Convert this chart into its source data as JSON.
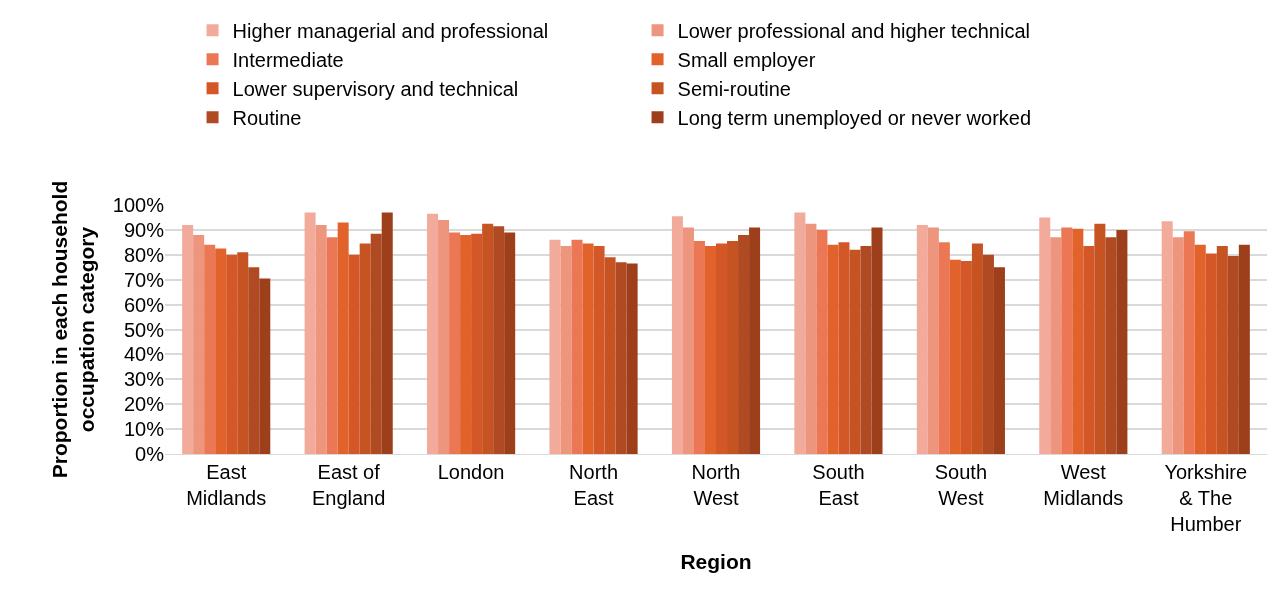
{
  "chart_data": {
    "type": "bar",
    "xlabel": "Region",
    "ylabel": "Proportion in each household occupation category",
    "categories": [
      "East Midlands",
      "East of England",
      "London",
      "North East",
      "North West",
      "South East",
      "South West",
      "West Midlands",
      "Yorkshire & The Humber"
    ],
    "series": [
      {
        "name": "Higher managerial and professional",
        "color": "#f2aa9a",
        "values": [
          0.92,
          0.97,
          0.965,
          0.86,
          0.955,
          0.97,
          0.92,
          0.95,
          0.935
        ]
      },
      {
        "name": "Lower professional and higher technical",
        "color": "#ee957e",
        "values": [
          0.88,
          0.92,
          0.94,
          0.835,
          0.91,
          0.925,
          0.91,
          0.87,
          0.87
        ]
      },
      {
        "name": "Intermediate",
        "color": "#eb7754",
        "values": [
          0.84,
          0.87,
          0.89,
          0.86,
          0.855,
          0.9,
          0.85,
          0.91,
          0.895
        ]
      },
      {
        "name": "Small employer",
        "color": "#e2622c",
        "values": [
          0.825,
          0.93,
          0.88,
          0.845,
          0.835,
          0.84,
          0.78,
          0.905,
          0.84
        ]
      },
      {
        "name": "Lower supervisory and technical",
        "color": "#d45827",
        "values": [
          0.8,
          0.8,
          0.885,
          0.835,
          0.845,
          0.85,
          0.775,
          0.835,
          0.805
        ]
      },
      {
        "name": "Semi-routine",
        "color": "#c65423",
        "values": [
          0.81,
          0.845,
          0.925,
          0.79,
          0.855,
          0.82,
          0.845,
          0.925,
          0.835
        ]
      },
      {
        "name": "Routine",
        "color": "#b04a22",
        "values": [
          0.75,
          0.885,
          0.915,
          0.77,
          0.88,
          0.835,
          0.8,
          0.87,
          0.795
        ]
      },
      {
        "name": "Long term unemployed or never worked",
        "color": "#9e3f1c",
        "values": [
          0.705,
          0.97,
          0.89,
          0.765,
          0.91,
          0.91,
          0.75,
          0.9,
          0.84
        ]
      }
    ],
    "ylim": [
      0,
      1
    ],
    "yticks": [
      {
        "value": 0,
        "label": "0%"
      },
      {
        "value": 0.1,
        "label": "10%"
      },
      {
        "value": 0.2,
        "label": "20%"
      },
      {
        "value": 0.3,
        "label": "30%"
      },
      {
        "value": 0.4,
        "label": "40%"
      },
      {
        "value": 0.5,
        "label": "50%"
      },
      {
        "value": 0.6,
        "label": "60%"
      },
      {
        "value": 0.7,
        "label": "70%"
      },
      {
        "value": 0.8,
        "label": "80%"
      },
      {
        "value": 0.9,
        "label": "90%"
      },
      {
        "value": 1,
        "label": "100%"
      }
    ],
    "grid": "y",
    "legend": "top"
  }
}
